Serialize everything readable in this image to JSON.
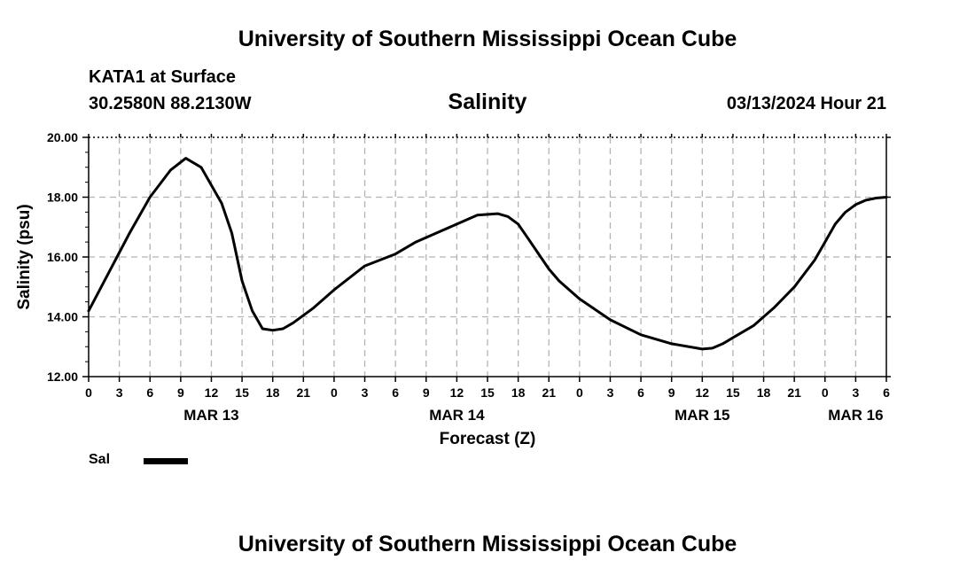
{
  "header": {
    "title": "University of Southern Mississippi Ocean Cube",
    "station": "KATA1 at Surface",
    "coords": "30.2580N  88.2130W",
    "chart_title": "Salinity",
    "datetime": "03/13/2024 Hour 21"
  },
  "footer": {
    "title": "University of Southern Mississippi Ocean Cube"
  },
  "legend": {
    "label": "Sal"
  },
  "chart_data": {
    "type": "line",
    "title": "Salinity",
    "xlabel": "Forecast (Z)",
    "ylabel": "Salinity (psu)",
    "xlim": [
      0,
      78
    ],
    "ylim": [
      12,
      20
    ],
    "grid": true,
    "legend_position": "bottom-left",
    "y_ticks": [
      "12.00",
      "14.00",
      "16.00",
      "18.00",
      "20.00"
    ],
    "x_tick_labels": [
      "0",
      "3",
      "6",
      "9",
      "12",
      "15",
      "18",
      "21",
      "0",
      "3",
      "6",
      "9",
      "12",
      "15",
      "18",
      "21",
      "0",
      "3",
      "6",
      "9",
      "12",
      "15",
      "18",
      "21",
      "0",
      "3",
      "6"
    ],
    "day_labels": [
      {
        "x": 12,
        "label": "MAR 13"
      },
      {
        "x": 36,
        "label": "MAR 14"
      },
      {
        "x": 60,
        "label": "MAR 15"
      },
      {
        "x": 75,
        "label": "MAR 16"
      }
    ],
    "series": [
      {
        "name": "Sal",
        "color": "#000000",
        "x": [
          0,
          2,
          4,
          6,
          8,
          9.5,
          11,
          13,
          14,
          15,
          16,
          17,
          18,
          19,
          20,
          22,
          24,
          27,
          30,
          32,
          34,
          36,
          38,
          40,
          41,
          42,
          43,
          44,
          45,
          46,
          48,
          51,
          54,
          57,
          60,
          61,
          62,
          63,
          65,
          67,
          69,
          71,
          72,
          73,
          74,
          75,
          76,
          77,
          78
        ],
        "values": [
          14.2,
          15.5,
          16.8,
          18.0,
          18.9,
          19.3,
          19.0,
          17.8,
          16.8,
          15.2,
          14.2,
          13.6,
          13.55,
          13.6,
          13.8,
          14.3,
          14.9,
          15.7,
          16.1,
          16.5,
          16.8,
          17.1,
          17.4,
          17.45,
          17.35,
          17.1,
          16.6,
          16.1,
          15.6,
          15.2,
          14.6,
          13.9,
          13.4,
          13.1,
          12.92,
          12.95,
          13.1,
          13.3,
          13.7,
          14.3,
          15.0,
          15.9,
          16.5,
          17.1,
          17.5,
          17.75,
          17.9,
          17.97,
          18.0
        ]
      }
    ]
  }
}
